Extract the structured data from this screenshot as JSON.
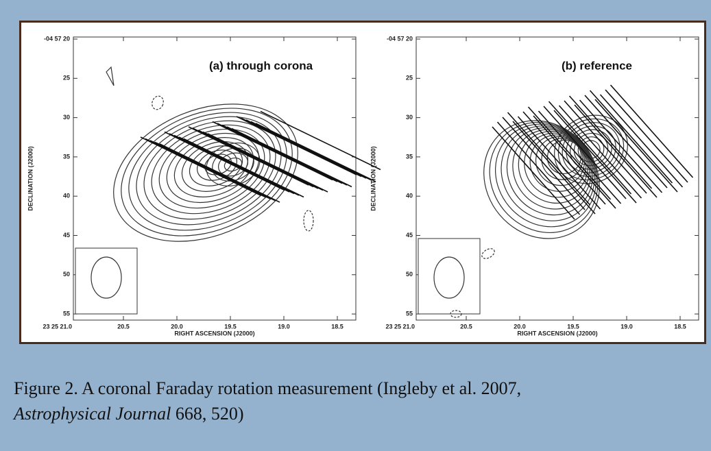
{
  "panels": [
    {
      "title": "(a) through corona",
      "x_label": "RIGHT ASCENSION (J2000)",
      "y_label": "DECLINATION (J2000)",
      "x_ticks": [
        "23 25 21.0",
        "20.5",
        "20.0",
        "19.5",
        "19.0",
        "18.5"
      ],
      "y_ticks": [
        "-04 57 20",
        "25",
        "30",
        "35",
        "40",
        "45",
        "50",
        "55"
      ]
    },
    {
      "title": "(b) reference",
      "x_label": "RIGHT ASCENSION (J2000)",
      "y_label": "DECLINATION (J2000)",
      "x_ticks": [
        "23 25 21.0",
        "20.5",
        "20.0",
        "19.5",
        "19.0",
        "18.5"
      ],
      "y_ticks": [
        "-04 57 20",
        "25",
        "30",
        "35",
        "40",
        "45",
        "50",
        "55"
      ]
    }
  ],
  "caption": {
    "text": "Figure 2. A coronal Faraday rotation measurement (Ingleby et al. 2007,",
    "journal": "Astrophysical Journal",
    "citation": "668, 520)"
  }
}
